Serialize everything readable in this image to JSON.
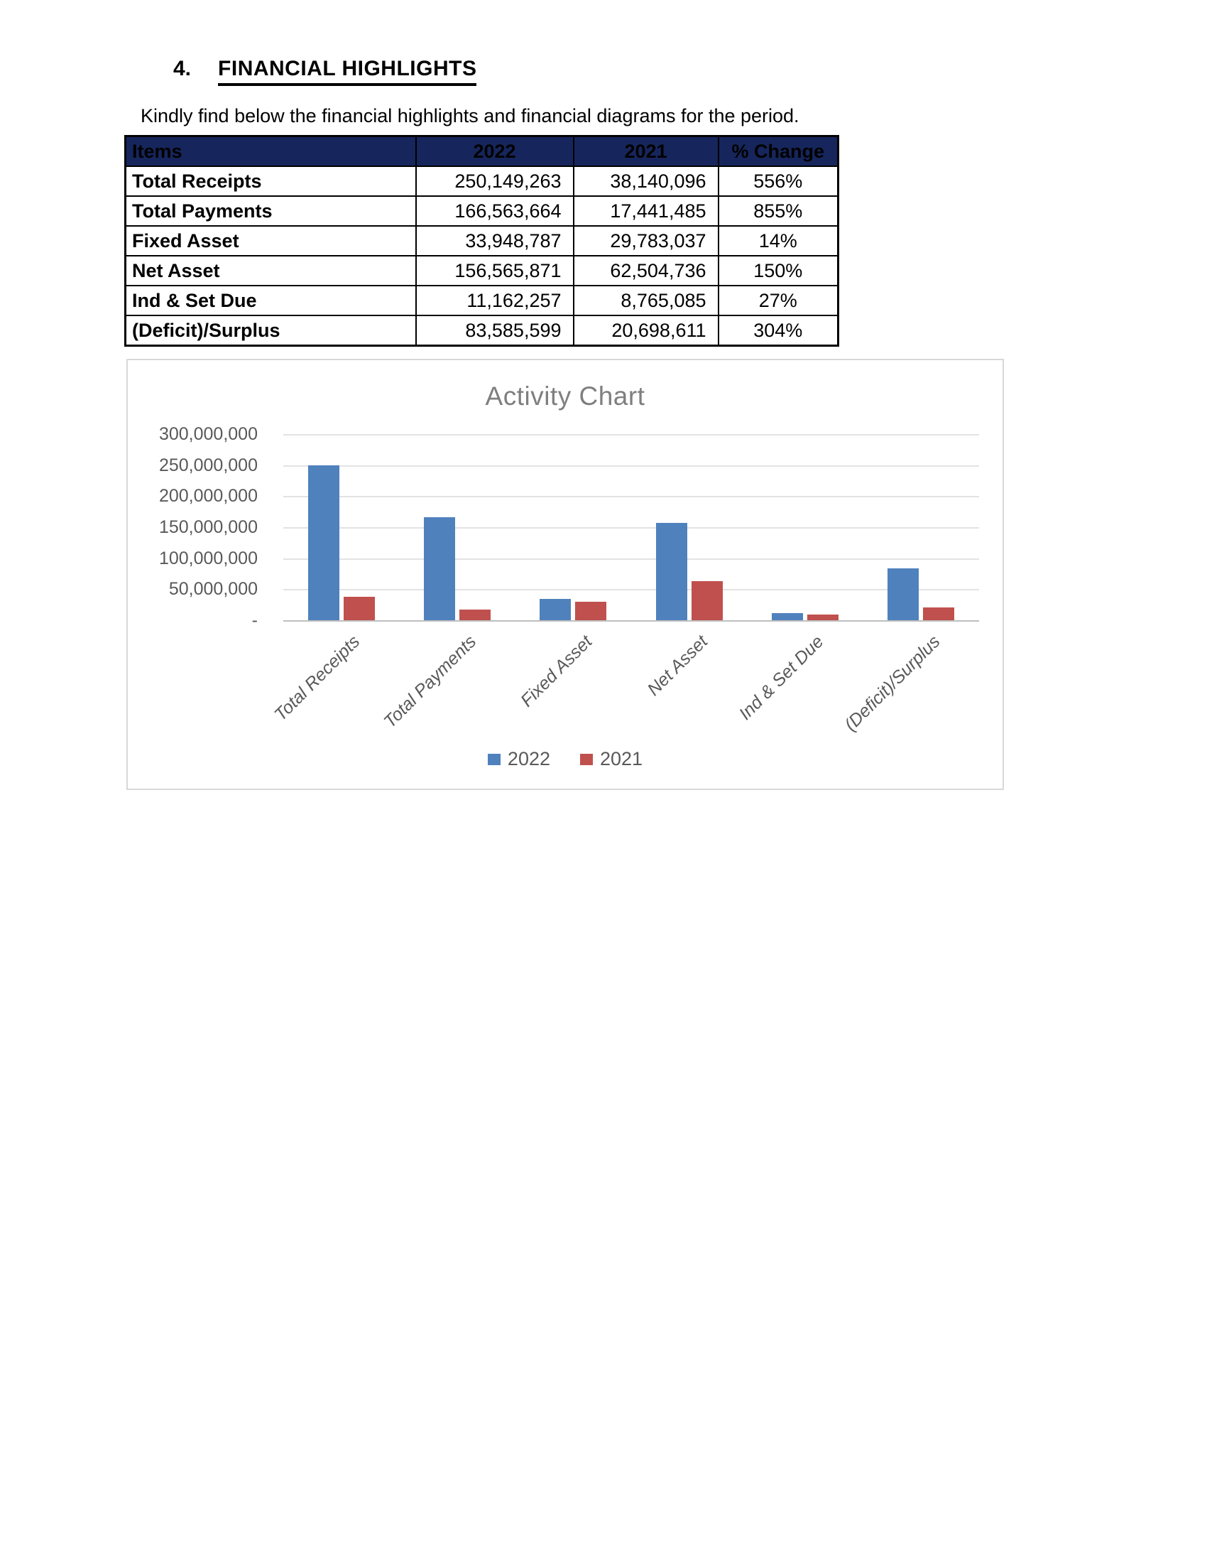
{
  "page": {
    "section_number": "4.",
    "heading": "FINANCIAL HIGHLIGHTS",
    "intro": "Kindly find below the financial highlights and financial diagrams for the period."
  },
  "table": {
    "header_bg": "#16265C",
    "headers": [
      "Items",
      "2022",
      "2021",
      "% Change"
    ],
    "rows": [
      {
        "item": "Total Receipts",
        "y2022": "250,149,263",
        "y2021": "38,140,096",
        "change": "556%"
      },
      {
        "item": "Total Payments",
        "y2022": "166,563,664",
        "y2021": "17,441,485",
        "change": "855%"
      },
      {
        "item": "Fixed Asset",
        "y2022": "33,948,787",
        "y2021": "29,783,037",
        "change": "14%"
      },
      {
        "item": "Net Asset",
        "y2022": "156,565,871",
        "y2021": "62,504,736",
        "change": "150%"
      },
      {
        "item": "Ind & Set Due",
        "y2022": "11,162,257",
        "y2021": "8,765,085",
        "change": "27%"
      },
      {
        "item": "(Deficit)/Surplus",
        "y2022": "83,585,599",
        "y2021": "20,698,611",
        "change": "304%"
      }
    ]
  },
  "chart_data": {
    "type": "bar",
    "title": "Activity Chart",
    "categories": [
      "Total Receipts",
      "Total Payments",
      "Fixed Asset",
      "Net Asset",
      "Ind & Set Due",
      "(Deficit)/Surplus"
    ],
    "series": [
      {
        "name": "2022",
        "color": "#4F81BD",
        "values": [
          250149263,
          166563664,
          33948787,
          156565871,
          11162257,
          83585599
        ]
      },
      {
        "name": "2021",
        "color": "#C0504D",
        "values": [
          38140096,
          17441485,
          29783037,
          62504736,
          8765085,
          20698611
        ]
      }
    ],
    "ylim": [
      0,
      300000000
    ],
    "ytick_interval": 50000000,
    "ytick_labels": [
      "300,000,000",
      "250,000,000",
      "200,000,000",
      "150,000,000",
      "100,000,000",
      "50,000,000",
      "-"
    ],
    "grid": true,
    "gridline_color": "#E3E3E3",
    "axis_line_color": "#BFBFBF",
    "title_color": "#7F7F7F",
    "label_color": "#595959",
    "legend_position": "bottom"
  }
}
